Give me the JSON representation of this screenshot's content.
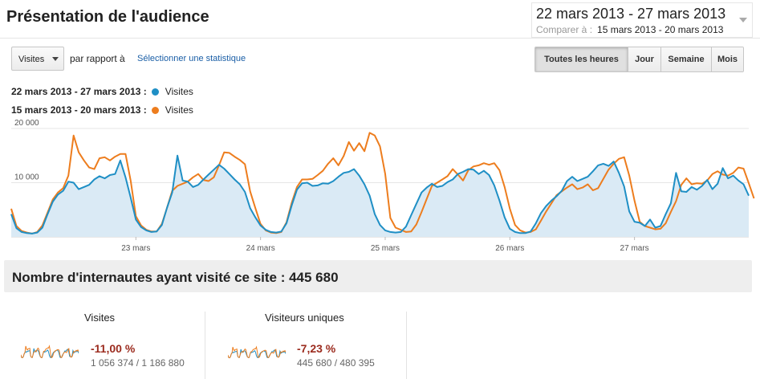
{
  "header": {
    "title": "Présentation de l'audience",
    "date_range": "22 mars 2013 - 27 mars 2013",
    "compare_label": "Comparer à :",
    "compare_range": "15 mars 2013 - 20 mars 2013"
  },
  "controls": {
    "metric_select": "Visites",
    "vs_label": "par rapport à",
    "select_stat_link": "Sélectionner une statistique",
    "granularity": [
      {
        "label": "Toutes les heures",
        "active": true
      },
      {
        "label": "Jour",
        "active": false
      },
      {
        "label": "Semaine",
        "active": false
      },
      {
        "label": "Mois",
        "active": false
      }
    ]
  },
  "legend": [
    {
      "range": "22 mars 2013 - 27 mars 2013 :",
      "series": "Visites",
      "color": "#1f8fc5"
    },
    {
      "range": "15 mars 2013 - 20 mars 2013 :",
      "series": "Visites",
      "color": "#ed7d1e"
    }
  ],
  "chart_data": {
    "type": "area",
    "x_tick_labels": [
      "23 mars",
      "24 mars",
      "25 mars",
      "26 mars",
      "27 mars"
    ],
    "y_tick_labels": [
      "20 000",
      "10 000"
    ],
    "ylim": [
      0,
      20000
    ],
    "x_unit": "hours since 22 mars 2013 00:00",
    "series": [
      {
        "color": "#1f8fc5",
        "fill": "#daeaf5",
        "values": [
          4200,
          1600,
          900,
          700,
          600,
          800,
          1700,
          4200,
          6500,
          7800,
          8500,
          10200,
          10000,
          8800,
          9200,
          9600,
          10600,
          11200,
          10800,
          11400,
          11600,
          14100,
          11000,
          7200,
          3200,
          1800,
          1200,
          900,
          1000,
          2200,
          5400,
          8200,
          15000,
          10400,
          10200,
          9200,
          9600,
          10600,
          11500,
          12400,
          13300,
          12600,
          11600,
          10600,
          9700,
          8300,
          5300,
          3600,
          2100,
          1300,
          900,
          800,
          1000,
          2500,
          5800,
          8700,
          9900,
          10000,
          9400,
          9500,
          9900,
          9800,
          10300,
          11100,
          11800,
          12000,
          12500,
          11300,
          9700,
          7600,
          4200,
          2200,
          1200,
          900,
          800,
          900,
          1900,
          4000,
          6100,
          8200,
          9100,
          9800,
          9200,
          9400,
          10100,
          10600,
          11600,
          12000,
          12500,
          12400,
          11600,
          12200,
          11400,
          9500,
          6700,
          3600,
          1500,
          900,
          700,
          700,
          1000,
          2500,
          4400,
          5700,
          6700,
          7500,
          8500,
          10300,
          11100,
          10300,
          10700,
          11100,
          12100,
          13200,
          13500,
          13100,
          13900,
          11800,
          9300,
          4700,
          2800,
          2600,
          2000,
          3200,
          1700,
          2000,
          4200,
          6200,
          11800,
          8400,
          8300,
          9200,
          8700,
          9400,
          10500,
          8800,
          9800,
          12700,
          10800,
          11300,
          10400,
          9700,
          7600
        ]
      },
      {
        "color": "#ed7d1e",
        "fill": "none",
        "values": [
          5200,
          2000,
          1100,
          800,
          600,
          900,
          2100,
          4500,
          6900,
          8200,
          9000,
          11300,
          18700,
          15600,
          14100,
          12800,
          12500,
          14500,
          14700,
          14100,
          14800,
          15300,
          15300,
          10300,
          3800,
          2100,
          1300,
          1000,
          1000,
          2400,
          5400,
          8500,
          9400,
          9800,
          10200,
          11000,
          11600,
          10500,
          10300,
          11000,
          13200,
          15600,
          15500,
          14800,
          14200,
          13400,
          8400,
          5300,
          2400,
          1200,
          800,
          700,
          900,
          2700,
          6300,
          9200,
          10600,
          10600,
          10700,
          11400,
          12200,
          13500,
          14500,
          13200,
          14900,
          17500,
          15900,
          17300,
          15800,
          19200,
          18700,
          16700,
          11600,
          3500,
          1700,
          1300,
          900,
          1000,
          2300,
          4600,
          7000,
          9400,
          10000,
          10600,
          11200,
          12500,
          11500,
          10400,
          12300,
          13000,
          13200,
          13600,
          13300,
          13600,
          12300,
          9200,
          5200,
          2200,
          1200,
          800,
          900,
          1400,
          3000,
          4700,
          6200,
          7700,
          8400,
          9100,
          9700,
          8800,
          9100,
          9700,
          8600,
          9000,
          10700,
          12400,
          13500,
          14400,
          14700,
          11300,
          6700,
          2800,
          2000,
          1700,
          1400,
          1500,
          2500,
          4600,
          6600,
          9600,
          10800,
          9700,
          9900,
          9800,
          10400,
          11600,
          12100,
          11500,
          11300,
          11800,
          12800,
          12600,
          9900,
          7100
        ]
      }
    ]
  },
  "visitors_summary": {
    "text": "Nombre d'internautes ayant visité ce site : 445 680"
  },
  "stats": [
    {
      "title": "Visites",
      "change": "-11,00 %",
      "compare": "1 056 374 / 1 186 880"
    },
    {
      "title": "Visiteurs uniques",
      "change": "-7,23 %",
      "compare": "445 680 / 480 395"
    }
  ]
}
